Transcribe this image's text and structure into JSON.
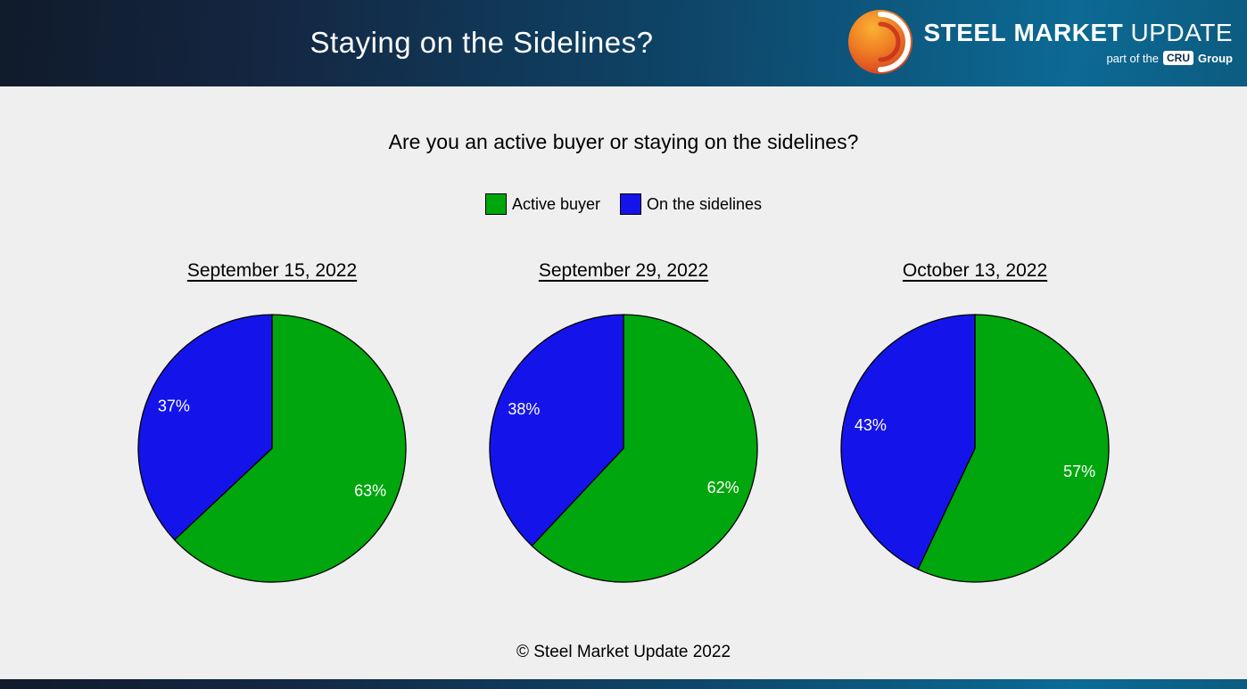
{
  "header": {
    "title": "Staying on the Sidelines?",
    "logo": {
      "steel": "STEEL",
      "market": "MARKET",
      "update": "UPDATE",
      "part_of": "part of the",
      "cru": "CRU",
      "group": "Group"
    }
  },
  "question": "Are you an active buyer or staying on the sidelines?",
  "legend": [
    {
      "label": "Active buyer",
      "color": "#00a60d"
    },
    {
      "label": "On the sidelines",
      "color": "#1414ea"
    }
  ],
  "chart_data": [
    {
      "type": "pie",
      "title": "September 15, 2022",
      "labels": [
        "Active buyer",
        "On the sidelines"
      ],
      "values": [
        63,
        37
      ],
      "value_labels": [
        "63%",
        "37%"
      ],
      "colors": [
        "#00a60d",
        "#1414ea"
      ],
      "start_angle": "12 o'clock, clockwise, Active buyer first"
    },
    {
      "type": "pie",
      "title": "September 29, 2022",
      "labels": [
        "Active buyer",
        "On the sidelines"
      ],
      "values": [
        62,
        38
      ],
      "value_labels": [
        "62%",
        "38%"
      ],
      "colors": [
        "#00a60d",
        "#1414ea"
      ],
      "start_angle": "12 o'clock, clockwise, Active buyer first"
    },
    {
      "type": "pie",
      "title": "October 13, 2022",
      "labels": [
        "Active buyer",
        "On the sidelines"
      ],
      "values": [
        57,
        43
      ],
      "value_labels": [
        "57%",
        "43%"
      ],
      "colors": [
        "#00a60d",
        "#1414ea"
      ],
      "start_angle": "12 o'clock, clockwise, Active buyer first"
    }
  ],
  "footer": "© Steel Market Update 2022"
}
